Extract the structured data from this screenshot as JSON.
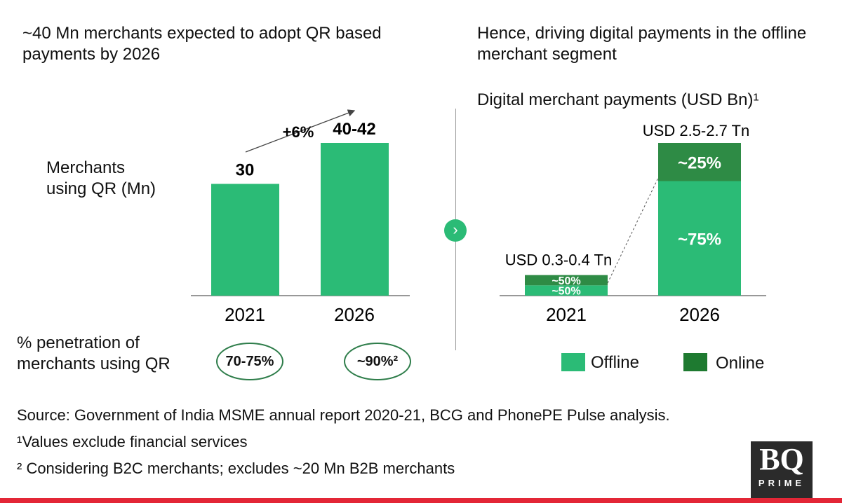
{
  "left": {
    "heading": "~40 Mn merchants expected to adopt QR based payments by 2026",
    "ylabel": "Merchants using QR (Mn)",
    "growth_label": "+6%",
    "penetration_label": "% penetration of merchants using QR",
    "penetration": [
      "70-75%",
      "~90%²"
    ]
  },
  "right": {
    "heading": "Hence, driving digital payments in the offline merchant segment",
    "chart_title": "Digital merchant payments (USD Bn)¹"
  },
  "chart_data": [
    {
      "type": "bar",
      "categories": [
        "2021",
        "2026"
      ],
      "values": [
        30,
        41
      ],
      "data_labels": [
        "30",
        "40-42"
      ],
      "ylabel": "Merchants using QR (Mn)",
      "color": "#2bbb76"
    },
    {
      "type": "bar",
      "stacked": true,
      "title": "Digital merchant payments (USD Bn)¹",
      "categories": [
        "2021",
        "2026"
      ],
      "totals_tn": [
        0.35,
        2.6
      ],
      "total_labels": [
        "USD 0.3-0.4 Tn",
        "USD 2.5-2.7 Tn"
      ],
      "series": [
        {
          "name": "Offline",
          "values": [
            50,
            75
          ],
          "labels": [
            "~50%",
            "~75%"
          ],
          "color": "#2bbb76"
        },
        {
          "name": "Online",
          "values": [
            50,
            25
          ],
          "labels": [
            "~50%",
            "~25%"
          ],
          "color": "#2e8b45"
        }
      ],
      "legend": "bottom"
    }
  ],
  "footer": {
    "source": "Source: Government of India MSME annual report 2020-21, BCG and PhonePE Pulse analysis.",
    "note1": "¹Values exclude financial services",
    "note2": "² Considering B2C merchants; excludes ~20 Mn B2B merchants"
  },
  "logo": {
    "text": "BQ",
    "sub": "PRIME"
  },
  "colors": {
    "offline": "#2bbb76",
    "online": "#2e8b45",
    "accent_bar": "#e32636"
  }
}
